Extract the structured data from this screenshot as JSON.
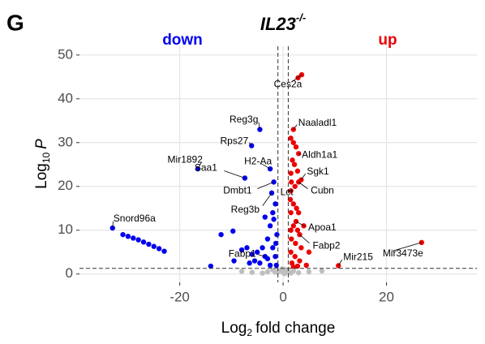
{
  "panel_label": "G",
  "chart_data": {
    "type": "scatter",
    "title": "IL23",
    "title_superscript": "-/-",
    "xlabel": {
      "text": "Log",
      "sub": "2",
      "after": "fold change"
    },
    "ylabel": {
      "text": "Log",
      "sub": "10",
      "after": "P"
    },
    "xlim": [
      -39.4,
      37.5
    ],
    "ylim": [
      -1.9,
      52
    ],
    "xticks": [
      -20,
      0,
      20
    ],
    "yticks": [
      0,
      10,
      20,
      30,
      40,
      50
    ],
    "grid": true,
    "thresholds": {
      "x": [
        -1,
        1
      ],
      "y": 1.3
    },
    "series": [
      {
        "name": "down",
        "color": "#0000ee",
        "x": [
          -33,
          -16.5,
          -4.5,
          -6.1,
          -7.4,
          -2.5,
          -1.8,
          -2.2,
          -3.5,
          -31,
          -30,
          -29,
          -28,
          -27,
          -26,
          -25,
          -24,
          -23,
          -14,
          -12,
          -9.7,
          -8,
          -7,
          -6,
          -5.5,
          -4.5,
          -4,
          -3,
          -2.5,
          -2,
          -1.5,
          -2,
          -1.5,
          -3,
          -1.3,
          -2.5,
          -5,
          -6.5,
          -9.5,
          -1.2,
          -1.8,
          -3.5,
          -1.4
        ],
        "y": [
          10.5,
          24,
          33,
          29.3,
          21.9,
          24,
          21,
          18.5,
          4,
          9,
          8.6,
          8.2,
          7.8,
          7.3,
          6.8,
          6.3,
          5.8,
          5.2,
          1.8,
          9,
          9.8,
          5.5,
          6,
          4.5,
          3,
          2.5,
          6,
          8,
          11,
          14,
          16,
          6,
          4,
          3.5,
          2,
          2,
          5,
          2.5,
          3,
          9,
          12.5,
          13,
          7
        ],
        "labels": [
          "Snord96a",
          "Mir1892",
          "Reg3g",
          "Rps27",
          "Saa1",
          "H2-Aa",
          "Dmbt1",
          "Reg3b",
          "Fabp1",
          null,
          null,
          null,
          null,
          null,
          null,
          null,
          null,
          null,
          null,
          null,
          null,
          null,
          null,
          null,
          null,
          null,
          null,
          null,
          null,
          null,
          null,
          null,
          null,
          null,
          null,
          null,
          null,
          null,
          null,
          null,
          null,
          null,
          null
        ]
      },
      {
        "name": "up",
        "color": "#ee0000",
        "x": [
          3.6,
          2,
          3,
          3.5,
          1.5,
          3,
          2.5,
          3.2,
          10.7,
          26.8,
          2.9,
          1.5,
          2,
          2.5,
          1.8,
          2.2,
          1.5,
          2.8,
          1.6,
          2.3,
          1.4,
          2,
          2.6,
          1.5,
          3,
          2,
          1.5,
          2.8,
          4,
          1.6,
          2.4,
          3.5,
          1.5,
          2.3,
          3.2,
          1.7,
          4.5,
          2.8,
          2,
          5
        ],
        "y": [
          45.5,
          33,
          27.5,
          21.5,
          19,
          21,
          12,
          9,
          1.9,
          7.2,
          44.8,
          31,
          30,
          29,
          26,
          25,
          23,
          23.5,
          21,
          20,
          17,
          16,
          15,
          14,
          14,
          11,
          10,
          10,
          11,
          8,
          7,
          6,
          5,
          4,
          3,
          2.5,
          2,
          1.8,
          1.6,
          5
        ],
        "labels": [
          "Ces2a",
          "Naaladl1",
          "Aldh1a1",
          "Sgk1",
          "Lct",
          "Cubn",
          "Apoa1",
          "Fabp2",
          "Mir215",
          "Mir3473e",
          null,
          null,
          null,
          null,
          null,
          null,
          null,
          null,
          null,
          null,
          null,
          null,
          null,
          null,
          null,
          null,
          null,
          null,
          null,
          null,
          null,
          null,
          null,
          null,
          null,
          null,
          null,
          null,
          null,
          null
        ]
      },
      {
        "color": "#bebebe",
        "x": [
          -1,
          -0.5,
          0,
          0.5,
          1,
          -1.5,
          1.5,
          -2,
          2,
          -3,
          3,
          -6,
          -8,
          5,
          7.5,
          -0.2,
          0.3,
          -4
        ],
        "y": [
          0.5,
          0.8,
          0.3,
          1,
          0.6,
          0.4,
          0.2,
          0.9,
          0.7,
          0.5,
          0.3,
          0.4,
          0.6,
          0.5,
          0.7,
          1.2,
          0.1,
          0.2
        ]
      }
    ]
  }
}
